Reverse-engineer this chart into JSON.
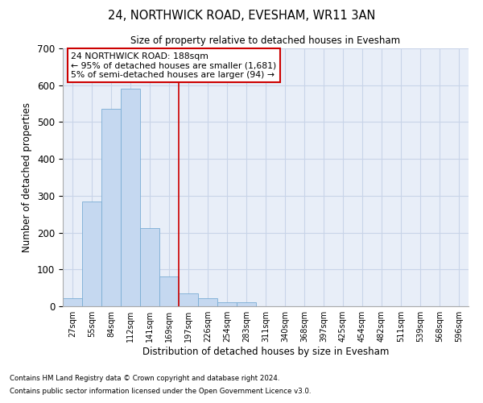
{
  "title": "24, NORTHWICK ROAD, EVESHAM, WR11 3AN",
  "subtitle": "Size of property relative to detached houses in Evesham",
  "xlabel": "Distribution of detached houses by size in Evesham",
  "ylabel": "Number of detached properties",
  "footnote1": "Contains HM Land Registry data © Crown copyright and database right 2024.",
  "footnote2": "Contains public sector information licensed under the Open Government Licence v3.0.",
  "bar_labels": [
    "27sqm",
    "55sqm",
    "84sqm",
    "112sqm",
    "141sqm",
    "169sqm",
    "197sqm",
    "226sqm",
    "254sqm",
    "283sqm",
    "311sqm",
    "340sqm",
    "368sqm",
    "397sqm",
    "425sqm",
    "454sqm",
    "482sqm",
    "511sqm",
    "539sqm",
    "568sqm",
    "596sqm"
  ],
  "bar_values": [
    22,
    285,
    535,
    590,
    212,
    80,
    34,
    22,
    10,
    10,
    0,
    0,
    0,
    0,
    0,
    0,
    0,
    0,
    0,
    0,
    0
  ],
  "bar_color": "#c5d8f0",
  "bar_edge_color": "#7aadd4",
  "grid_color": "#c8d4e8",
  "background_color": "#e8eef8",
  "annotation_text": "24 NORTHWICK ROAD: 188sqm\n← 95% of detached houses are smaller (1,681)\n5% of semi-detached houses are larger (94) →",
  "vline_x_idx": 5.5,
  "vline_color": "#cc0000",
  "annotation_box_color": "#cc0000",
  "ylim": [
    0,
    700
  ],
  "yticks": [
    0,
    100,
    200,
    300,
    400,
    500,
    600,
    700
  ]
}
